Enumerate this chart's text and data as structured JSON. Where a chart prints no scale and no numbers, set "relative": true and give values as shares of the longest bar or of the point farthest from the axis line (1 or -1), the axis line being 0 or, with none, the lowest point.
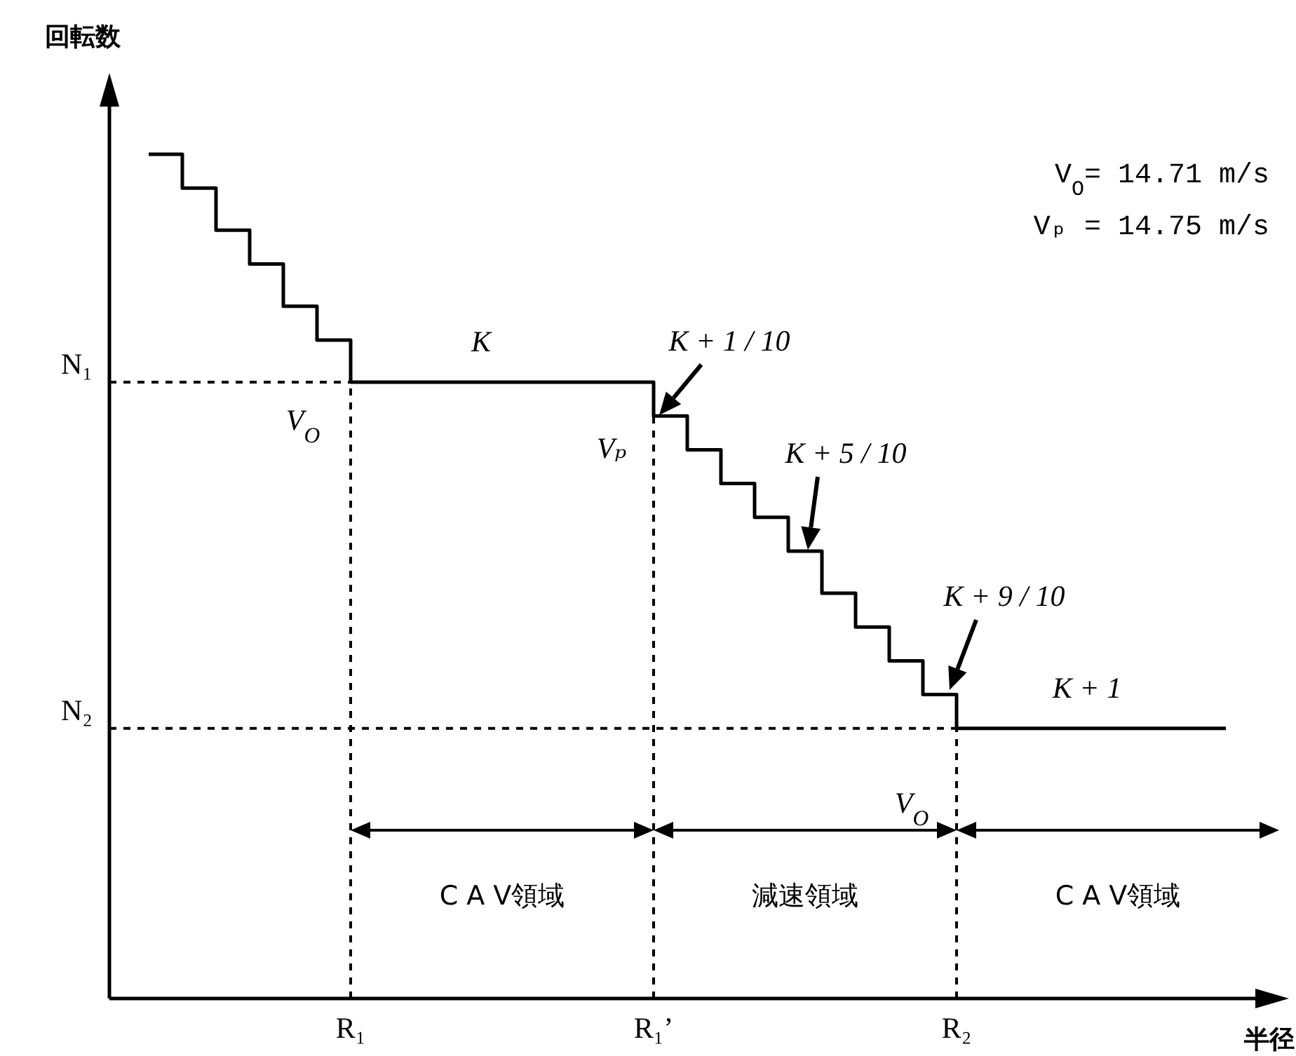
{
  "chart_data": {
    "type": "step",
    "relative": true,
    "ylabel": "回転数",
    "xlabel": "半径",
    "categories": [
      null,
      null,
      null,
      null,
      null,
      null,
      "R₁",
      null,
      null,
      null,
      null,
      null,
      null,
      null,
      null,
      "R₁’",
      null,
      null,
      null,
      null,
      null,
      null,
      null,
      null,
      "R₂",
      null,
      null,
      null,
      null,
      null,
      null,
      null,
      null
    ],
    "series": [
      {
        "color": "#000000",
        "values": [
          1.0,
          0.96,
          0.91,
          0.87,
          0.82,
          0.78,
          0.73,
          0.73,
          0.73,
          0.73,
          0.73,
          0.73,
          0.73,
          0.73,
          0.73,
          0.69,
          0.65,
          0.61,
          0.57,
          0.53,
          0.48,
          0.44,
          0.4,
          0.36,
          0.32,
          0.32,
          0.32,
          0.32,
          0.32,
          0.32,
          0.32,
          0.32,
          0.32
        ]
      }
    ],
    "ref_lines": [
      {
        "axis": "y",
        "value": 0.73,
        "label": "N₁",
        "line_style": "dashed"
      },
      {
        "axis": "y",
        "value": 0.32,
        "label": "N₂",
        "line_style": "dashed"
      },
      {
        "axis": "x",
        "value": "R₁",
        "line_style": "dashed"
      },
      {
        "axis": "x",
        "value": "R₁’",
        "line_style": "dashed"
      },
      {
        "axis": "x",
        "value": "R₂",
        "line_style": "dashed"
      }
    ],
    "annotations": [
      {
        "text": "K",
        "y": 0.73
      },
      {
        "text": "V$_{O}$",
        "x": "R₁",
        "y": 0.73
      },
      {
        "text": "Vₚ",
        "x": "R₁’",
        "y": 0.69
      },
      {
        "text": "V$_{O}$",
        "x": "R₂",
        "y": 0.32
      },
      {
        "text": "K + 1",
        "y": 0.32
      },
      "K + 1 / 10",
      "K + 5 / 10",
      "K + 9 / 10",
      "C A V領域",
      "減速領域",
      "C A V領域",
      "V$_{O}$=  14.71 m/s",
      "Vₚ =  14.75 m/s"
    ]
  }
}
